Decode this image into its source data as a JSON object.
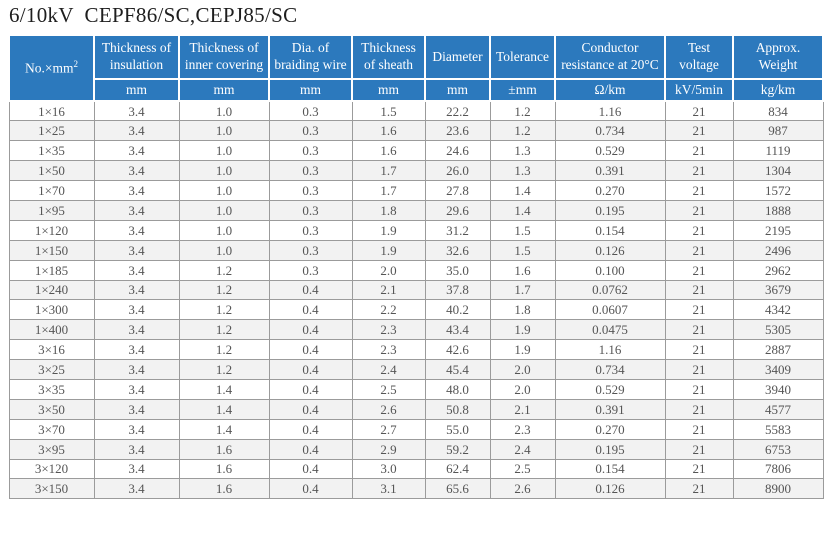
{
  "title": "6/10kV  CEPF86/SC,CEPJ85/SC",
  "colors": {
    "header_bg": "#2c79bd",
    "header_text": "#ffffff",
    "row_alt_bg": "#f2f2f2",
    "cell_text": "#555555",
    "grid_line": "#9b9b9b"
  },
  "table": {
    "columns": [
      {
        "label": "No.×mm",
        "sup": "2",
        "unit": ""
      },
      {
        "label": "Thickness of insulation",
        "unit": "mm"
      },
      {
        "label": "Thickness of inner covering",
        "unit": "mm"
      },
      {
        "label": "Dia. of braiding wire",
        "unit": "mm"
      },
      {
        "label": "Thickness of sheath",
        "unit": "mm"
      },
      {
        "label": "Diameter",
        "unit": "mm"
      },
      {
        "label": "Tolerance",
        "unit": "±mm"
      },
      {
        "label": "Conductor resistance at 20°C",
        "unit": "Ω/km"
      },
      {
        "label": "Test voltage",
        "unit": "kV/5min"
      },
      {
        "label": "Approx. Weight",
        "unit": "kg/km"
      }
    ],
    "rows": [
      [
        "1×16",
        "3.4",
        "1.0",
        "0.3",
        "1.5",
        "22.2",
        "1.2",
        "1.16",
        "21",
        "834"
      ],
      [
        "1×25",
        "3.4",
        "1.0",
        "0.3",
        "1.6",
        "23.6",
        "1.2",
        "0.734",
        "21",
        "987"
      ],
      [
        "1×35",
        "3.4",
        "1.0",
        "0.3",
        "1.6",
        "24.6",
        "1.3",
        "0.529",
        "21",
        "1119"
      ],
      [
        "1×50",
        "3.4",
        "1.0",
        "0.3",
        "1.7",
        "26.0",
        "1.3",
        "0.391",
        "21",
        "1304"
      ],
      [
        "1×70",
        "3.4",
        "1.0",
        "0.3",
        "1.7",
        "27.8",
        "1.4",
        "0.270",
        "21",
        "1572"
      ],
      [
        "1×95",
        "3.4",
        "1.0",
        "0.3",
        "1.8",
        "29.6",
        "1.4",
        "0.195",
        "21",
        "1888"
      ],
      [
        "1×120",
        "3.4",
        "1.0",
        "0.3",
        "1.9",
        "31.2",
        "1.5",
        "0.154",
        "21",
        "2195"
      ],
      [
        "1×150",
        "3.4",
        "1.0",
        "0.3",
        "1.9",
        "32.6",
        "1.5",
        "0.126",
        "21",
        "2496"
      ],
      [
        "1×185",
        "3.4",
        "1.2",
        "0.3",
        "2.0",
        "35.0",
        "1.6",
        "0.100",
        "21",
        "2962"
      ],
      [
        "1×240",
        "3.4",
        "1.2",
        "0.4",
        "2.1",
        "37.8",
        "1.7",
        "0.0762",
        "21",
        "3679"
      ],
      [
        "1×300",
        "3.4",
        "1.2",
        "0.4",
        "2.2",
        "40.2",
        "1.8",
        "0.0607",
        "21",
        "4342"
      ],
      [
        "1×400",
        "3.4",
        "1.2",
        "0.4",
        "2.3",
        "43.4",
        "1.9",
        "0.0475",
        "21",
        "5305"
      ],
      [
        "3×16",
        "3.4",
        "1.2",
        "0.4",
        "2.3",
        "42.6",
        "1.9",
        "1.16",
        "21",
        "2887"
      ],
      [
        "3×25",
        "3.4",
        "1.2",
        "0.4",
        "2.4",
        "45.4",
        "2.0",
        "0.734",
        "21",
        "3409"
      ],
      [
        "3×35",
        "3.4",
        "1.4",
        "0.4",
        "2.5",
        "48.0",
        "2.0",
        "0.529",
        "21",
        "3940"
      ],
      [
        "3×50",
        "3.4",
        "1.4",
        "0.4",
        "2.6",
        "50.8",
        "2.1",
        "0.391",
        "21",
        "4577"
      ],
      [
        "3×70",
        "3.4",
        "1.4",
        "0.4",
        "2.7",
        "55.0",
        "2.3",
        "0.270",
        "21",
        "5583"
      ],
      [
        "3×95",
        "3.4",
        "1.6",
        "0.4",
        "2.9",
        "59.2",
        "2.4",
        "0.195",
        "21",
        "6753"
      ],
      [
        "3×120",
        "3.4",
        "1.6",
        "0.4",
        "3.0",
        "62.4",
        "2.5",
        "0.154",
        "21",
        "7806"
      ],
      [
        "3×150",
        "3.4",
        "1.6",
        "0.4",
        "3.1",
        "65.6",
        "2.6",
        "0.126",
        "21",
        "8900"
      ]
    ]
  }
}
